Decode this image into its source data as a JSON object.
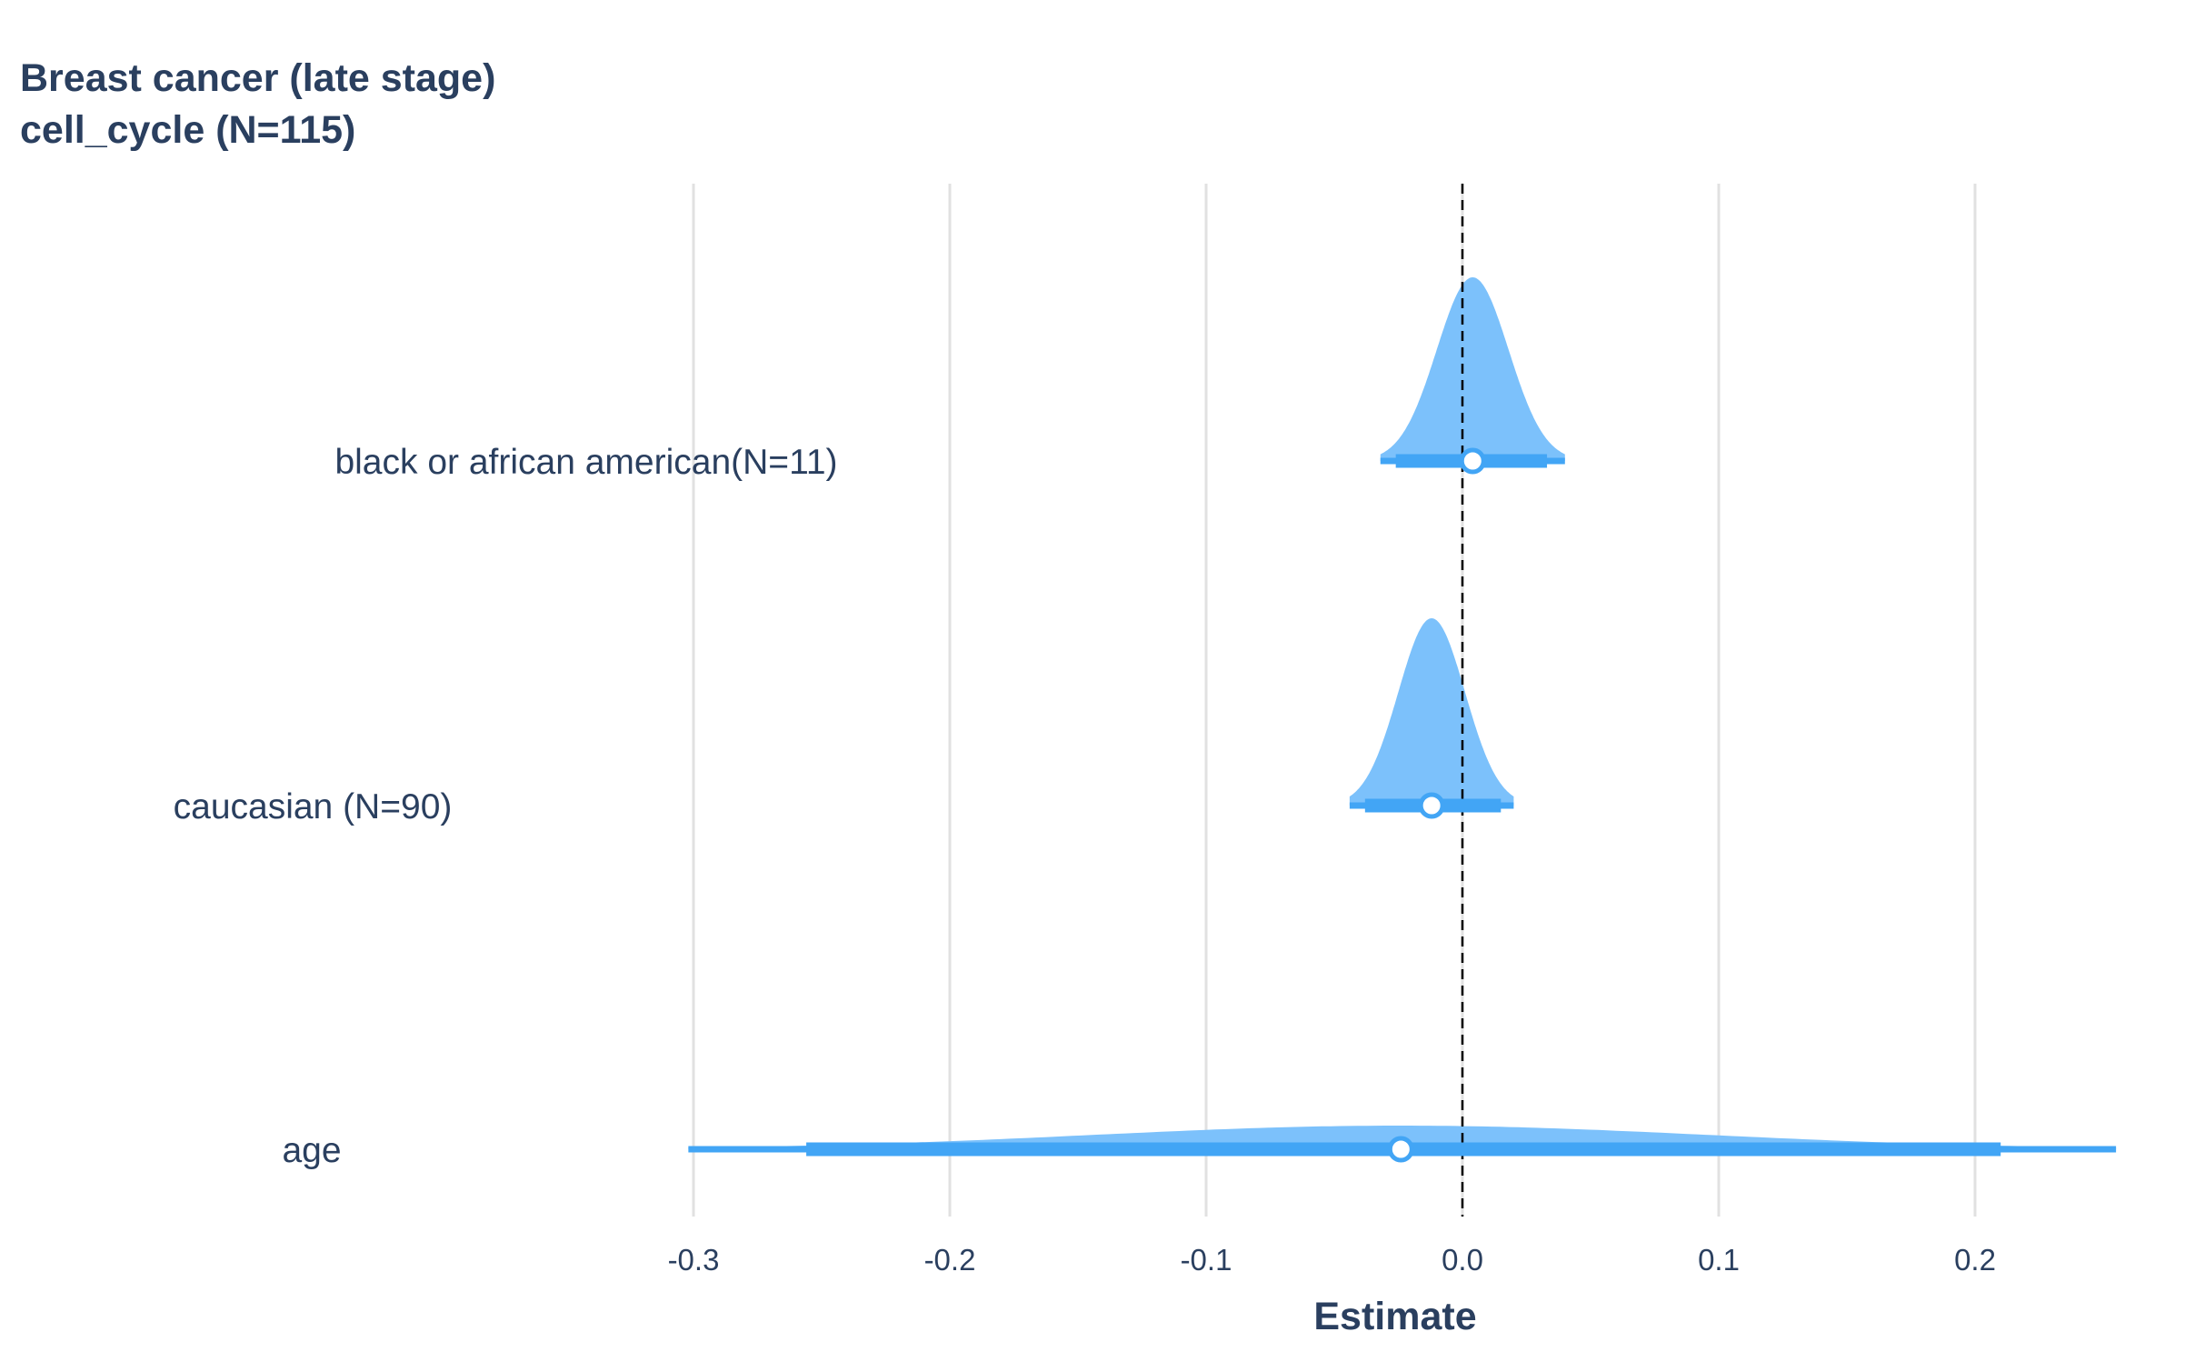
{
  "chart_data": {
    "type": "violin",
    "title_lines": [
      "Breast cancer  (late stage)",
      "cell_cycle (N=115)"
    ],
    "xlabel": "Estimate",
    "ylabel": "",
    "xlim": [
      -0.3,
      0.25
    ],
    "xticks": [
      -0.3,
      -0.2,
      -0.1,
      0.0,
      0.1,
      0.2
    ],
    "xtick_labels": [
      "-0.3",
      "-0.2",
      "-0.1",
      "0.0",
      "0.1",
      "0.2"
    ],
    "grid": "vertical",
    "reference_line": {
      "x": 0.0,
      "style": "dashed",
      "color": "#000000"
    },
    "colors": {
      "violin_fill": "#7cc1fb",
      "interval": "#42a5f5",
      "point_fill": "#ffffff",
      "grid": "#e1e1e1",
      "text": "#2a3f5f"
    },
    "series": [
      {
        "name": "black or african american(N=11)",
        "estimate": 0.004,
        "ci_inner": [
          -0.026,
          0.033
        ],
        "ci_outer": [
          -0.032,
          0.04
        ],
        "density_sd": 0.014
      },
      {
        "name": "caucasian (N=90)",
        "estimate": -0.012,
        "ci_inner": [
          -0.038,
          0.015
        ],
        "ci_outer": [
          -0.044,
          0.02
        ],
        "density_sd": 0.013
      },
      {
        "name": "age",
        "estimate": -0.024,
        "ci_inner": [
          -0.256,
          0.21
        ],
        "ci_outer": [
          -0.302,
          0.255
        ],
        "density_sd": 0.12
      }
    ]
  }
}
